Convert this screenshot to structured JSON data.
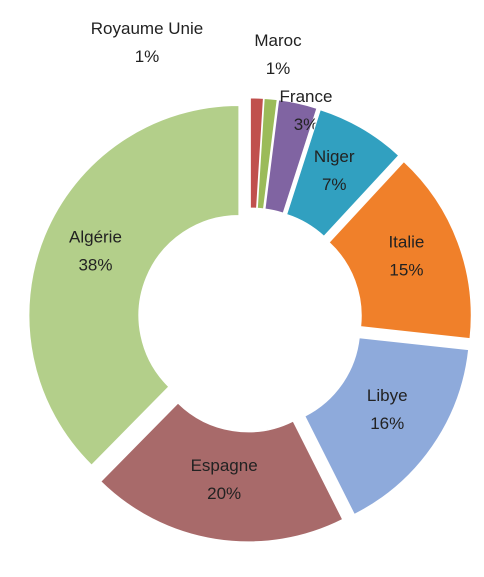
{
  "chart_data": {
    "type": "donut",
    "categories": [
      "Royaume Unie",
      "Maroc",
      "France",
      "Niger",
      "Italie",
      "Libye",
      "Espagne",
      "Algérie"
    ],
    "values": [
      1,
      1,
      3,
      7,
      15,
      16,
      20,
      38
    ],
    "value_labels": [
      "1%",
      "1%",
      "3%",
      "7%",
      "15%",
      "16%",
      "20%",
      "38%"
    ],
    "colors": [
      "#c0504d",
      "#9bbb59",
      "#8064a2",
      "#31a0c0",
      "#f0802a",
      "#8eaadb",
      "#a86a6a",
      "#b3cf8a"
    ]
  }
}
